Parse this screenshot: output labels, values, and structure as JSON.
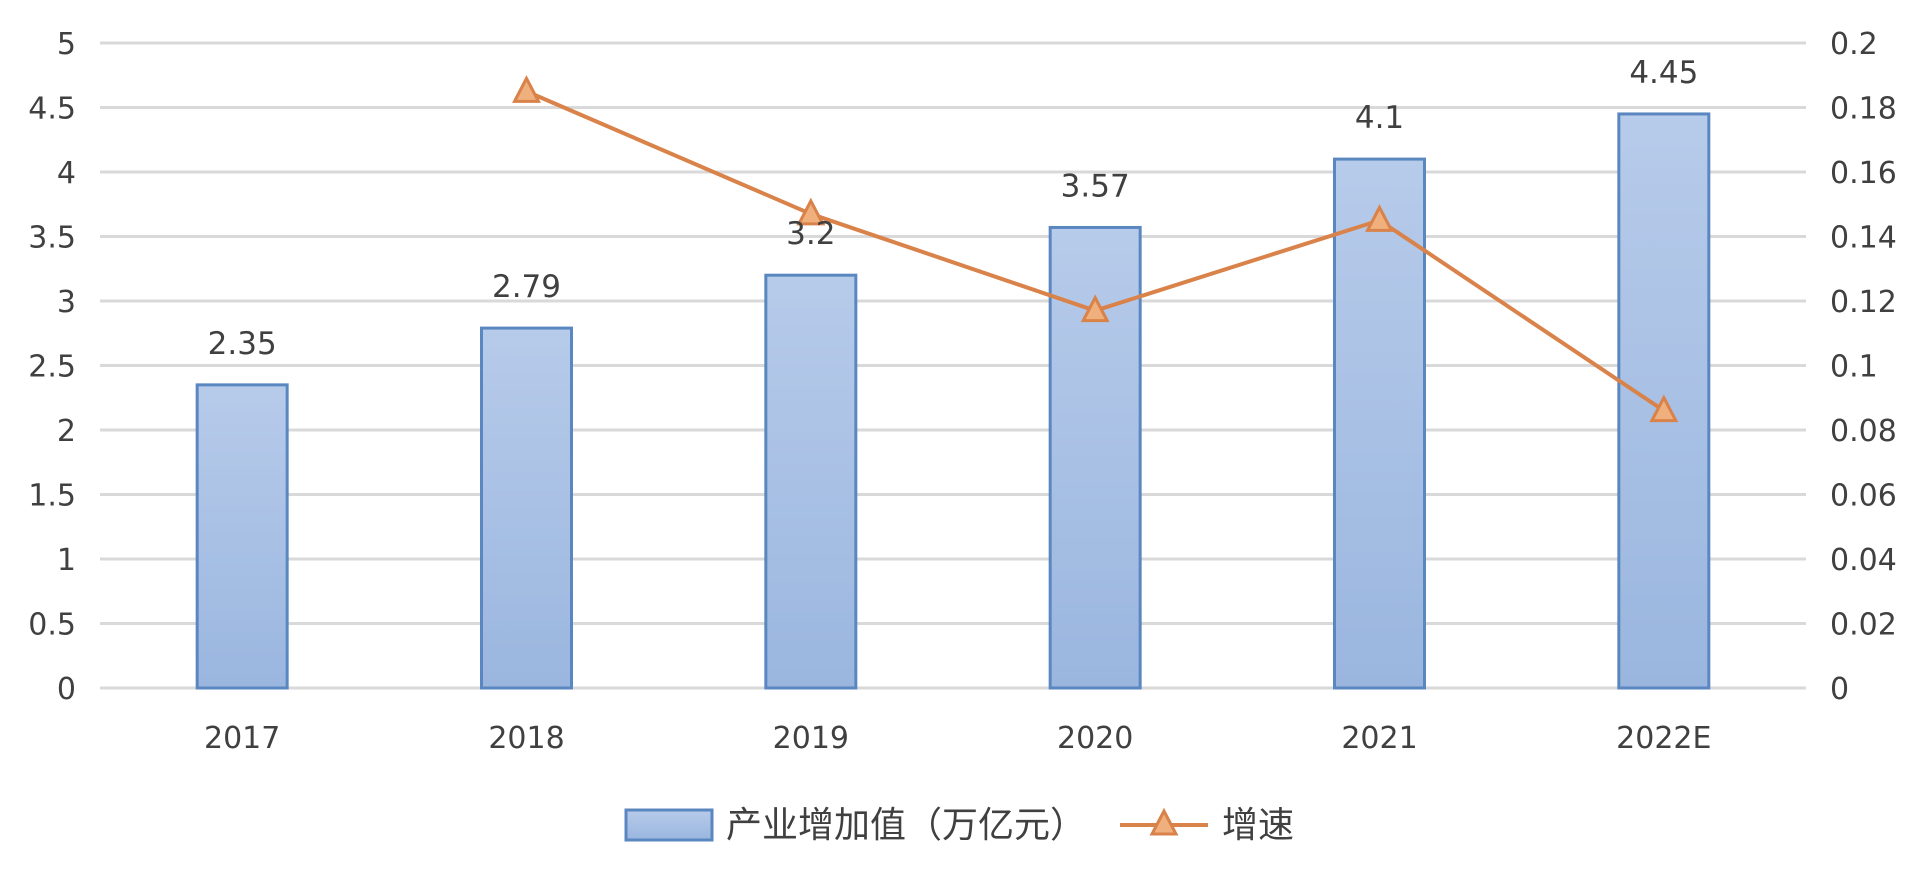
{
  "chart_data": {
    "type": "bar",
    "categories": [
      "2017",
      "2018",
      "2019",
      "2020",
      "2021",
      "2022E"
    ],
    "series": [
      {
        "name": "产业增加值（万亿元）",
        "type": "bar",
        "axis": "left",
        "values": [
          2.35,
          2.79,
          3.2,
          3.57,
          4.1,
          4.45
        ],
        "data_labels": [
          "2.35",
          "2.79",
          "3.2",
          "3.57",
          "4.1",
          "4.45"
        ],
        "color": "#a3bce2",
        "border_color": "#5b87c0"
      },
      {
        "name": "增速",
        "type": "line",
        "axis": "right",
        "marker": "triangle",
        "values": [
          null,
          0.185,
          0.147,
          0.117,
          0.145,
          0.086
        ],
        "color": "#d9824a",
        "marker_fill": "#f0b07e"
      }
    ],
    "y_left": {
      "ylim": [
        0,
        5
      ],
      "ticks": [
        "0",
        "0.5",
        "1",
        "1.5",
        "2",
        "2.5",
        "3",
        "3.5",
        "4",
        "4.5",
        "5"
      ],
      "tick_values": [
        0,
        0.5,
        1,
        1.5,
        2,
        2.5,
        3,
        3.5,
        4,
        4.5,
        5
      ]
    },
    "y_right": {
      "ylim": [
        0,
        0.2
      ],
      "ticks": [
        "0",
        "0.02",
        "0.04",
        "0.06",
        "0.08",
        "0.1",
        "0.12",
        "0.14",
        "0.16",
        "0.18",
        "0.2"
      ],
      "tick_values": [
        0,
        0.02,
        0.04,
        0.06,
        0.08,
        0.1,
        0.12,
        0.14,
        0.16,
        0.18,
        0.2
      ]
    },
    "grid": true,
    "grid_color": "#d9d9d9",
    "legend_position": "bottom",
    "legend": [
      {
        "label": "产业增加值（万亿元）",
        "marker": "bar"
      },
      {
        "label": "增速",
        "marker": "line-triangle"
      }
    ]
  }
}
